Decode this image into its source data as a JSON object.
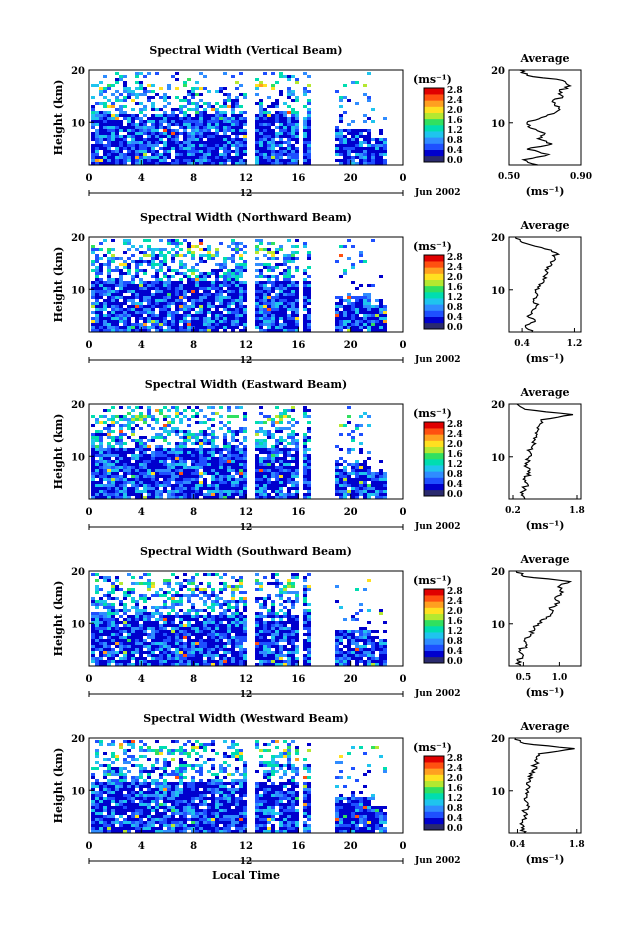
{
  "chart_data": [
    {
      "type": "heatmap",
      "title": "Spectral Width (Vertical Beam)",
      "ylabel": "Height (km)",
      "yticks": [
        "20",
        "10"
      ],
      "xticks": [
        "0",
        "4",
        "8",
        "12",
        "16",
        "20",
        "0"
      ],
      "day_mark": "12",
      "date_label": "Jun 2002",
      "colorbar": {
        "unit": "(ms⁻¹)",
        "ticks": [
          "2.8",
          "2.4",
          "2.0",
          "1.6",
          "1.2",
          "0.8",
          "0.4",
          "0.0"
        ]
      },
      "profile": {
        "title": "Average",
        "xlabel": "(ms⁻¹)",
        "xticks": [
          "0.50",
          "0.90"
        ],
        "yticks": [
          "20",
          "10"
        ],
        "x_range": [
          0.5,
          0.9
        ],
        "y_range": [
          2,
          20
        ],
        "heights": [
          2,
          3,
          4,
          5,
          6,
          7,
          8,
          9,
          10,
          11,
          12,
          13,
          14,
          15,
          16,
          17,
          18,
          19,
          20
        ],
        "values": [
          0.66,
          0.58,
          0.72,
          0.6,
          0.74,
          0.66,
          0.7,
          0.62,
          0.6,
          0.68,
          0.76,
          0.78,
          0.74,
          0.8,
          0.78,
          0.84,
          0.8,
          0.6,
          0.56
        ]
      }
    },
    {
      "type": "heatmap",
      "title": "Spectral Width (Northward Beam)",
      "ylabel": "Height (km)",
      "yticks": [
        "20",
        "10"
      ],
      "xticks": [
        "0",
        "4",
        "8",
        "12",
        "16",
        "20",
        "0"
      ],
      "day_mark": "12",
      "date_label": "Jun 2002",
      "colorbar": {
        "unit": "(ms⁻¹)",
        "ticks": [
          "2.8",
          "2.4",
          "2.0",
          "1.6",
          "1.2",
          "0.8",
          "0.4",
          "0.0"
        ]
      },
      "profile": {
        "title": "Average",
        "xlabel": "(ms⁻¹)",
        "xticks": [
          "0.4",
          "1.2"
        ],
        "yticks": [
          "20",
          "10"
        ],
        "x_range": [
          0.2,
          1.3
        ],
        "y_range": [
          2,
          20
        ],
        "heights": [
          2,
          3,
          4,
          5,
          6,
          7,
          8,
          9,
          10,
          11,
          12,
          13,
          14,
          15,
          16,
          17,
          18,
          19,
          20
        ],
        "values": [
          0.55,
          0.45,
          0.6,
          0.48,
          0.55,
          0.62,
          0.58,
          0.64,
          0.6,
          0.66,
          0.72,
          0.78,
          0.8,
          0.84,
          0.9,
          0.92,
          0.7,
          0.4,
          0.3
        ]
      }
    },
    {
      "type": "heatmap",
      "title": "Spectral Width (Eastward Beam)",
      "ylabel": "Height (km)",
      "yticks": [
        "20",
        "10"
      ],
      "xticks": [
        "0",
        "4",
        "8",
        "12",
        "16",
        "20",
        "0"
      ],
      "day_mark": "12",
      "date_label": "Jun 2002",
      "colorbar": {
        "unit": "(ms⁻¹)",
        "ticks": [
          "2.8",
          "2.4",
          "2.0",
          "1.6",
          "1.2",
          "0.8",
          "0.4",
          "0.0"
        ]
      },
      "profile": {
        "title": "Average",
        "xlabel": "(ms⁻¹)",
        "xticks": [
          "0.2",
          "1.8"
        ],
        "yticks": [
          "20",
          "10"
        ],
        "x_range": [
          0.1,
          1.9
        ],
        "y_range": [
          2,
          20
        ],
        "heights": [
          2,
          3,
          4,
          5,
          6,
          7,
          8,
          9,
          10,
          11,
          12,
          13,
          14,
          15,
          16,
          17,
          18,
          19,
          20
        ],
        "values": [
          0.5,
          0.45,
          0.48,
          0.55,
          0.5,
          0.62,
          0.55,
          0.58,
          0.6,
          0.62,
          0.68,
          0.72,
          0.78,
          0.82,
          0.86,
          0.9,
          1.7,
          0.5,
          0.3
        ]
      }
    },
    {
      "type": "heatmap",
      "title": "Spectral Width (Southward Beam)",
      "ylabel": "Height (km)",
      "yticks": [
        "20",
        "10"
      ],
      "xticks": [
        "0",
        "4",
        "8",
        "12",
        "16",
        "20",
        "0"
      ],
      "day_mark": "12",
      "date_label": "Jun 2002",
      "colorbar": {
        "unit": "(ms⁻¹)",
        "ticks": [
          "2.8",
          "2.4",
          "2.0",
          "1.6",
          "1.2",
          "0.8",
          "0.4",
          "0.0"
        ]
      },
      "profile": {
        "title": "Average",
        "xlabel": "(ms⁻¹)",
        "xticks": [
          "0.5",
          "1.0"
        ],
        "yticks": [
          "20",
          "10"
        ],
        "x_range": [
          0.3,
          1.3
        ],
        "y_range": [
          2,
          20
        ],
        "heights": [
          2,
          3,
          4,
          5,
          6,
          7,
          8,
          9,
          10,
          11,
          12,
          13,
          14,
          15,
          16,
          17,
          18,
          19,
          20
        ],
        "values": [
          0.45,
          0.42,
          0.5,
          0.46,
          0.55,
          0.52,
          0.6,
          0.66,
          0.7,
          0.82,
          0.9,
          0.86,
          1.0,
          0.94,
          1.05,
          0.98,
          1.15,
          0.5,
          0.4
        ]
      }
    },
    {
      "type": "heatmap",
      "title": "Spectral Width (Westward Beam)",
      "ylabel": "Height (km)",
      "yticks": [
        "20",
        "10"
      ],
      "xticks": [
        "0",
        "4",
        "8",
        "12",
        "16",
        "20",
        "0"
      ],
      "day_mark": "12",
      "date_label": "Jun 2002",
      "xlabel": "Local Time",
      "colorbar": {
        "unit": "(ms⁻¹)",
        "ticks": [
          "2.8",
          "2.4",
          "2.0",
          "1.6",
          "1.2",
          "0.8",
          "0.4",
          "0.0"
        ]
      },
      "profile": {
        "title": "Average",
        "xlabel": "(ms⁻¹)",
        "xticks": [
          "0.4",
          "1.8"
        ],
        "yticks": [
          "20",
          "10"
        ],
        "x_range": [
          0.2,
          1.9
        ],
        "y_range": [
          2,
          20
        ],
        "heights": [
          2,
          3,
          4,
          5,
          6,
          7,
          8,
          9,
          10,
          11,
          12,
          13,
          14,
          15,
          16,
          17,
          18,
          19,
          20
        ],
        "values": [
          0.55,
          0.5,
          0.52,
          0.58,
          0.55,
          0.68,
          0.6,
          0.62,
          0.64,
          0.66,
          0.7,
          0.74,
          0.78,
          0.82,
          0.86,
          0.9,
          1.75,
          0.55,
          0.35
        ]
      }
    }
  ],
  "colors": {
    "scale": [
      "#2a2a6e",
      "#0000cd",
      "#1e50ff",
      "#2f8cff",
      "#1fc4ee",
      "#00ddb0",
      "#30e060",
      "#b4e830",
      "#ffe020",
      "#ffa020",
      "#ff5010",
      "#e00000"
    ]
  }
}
